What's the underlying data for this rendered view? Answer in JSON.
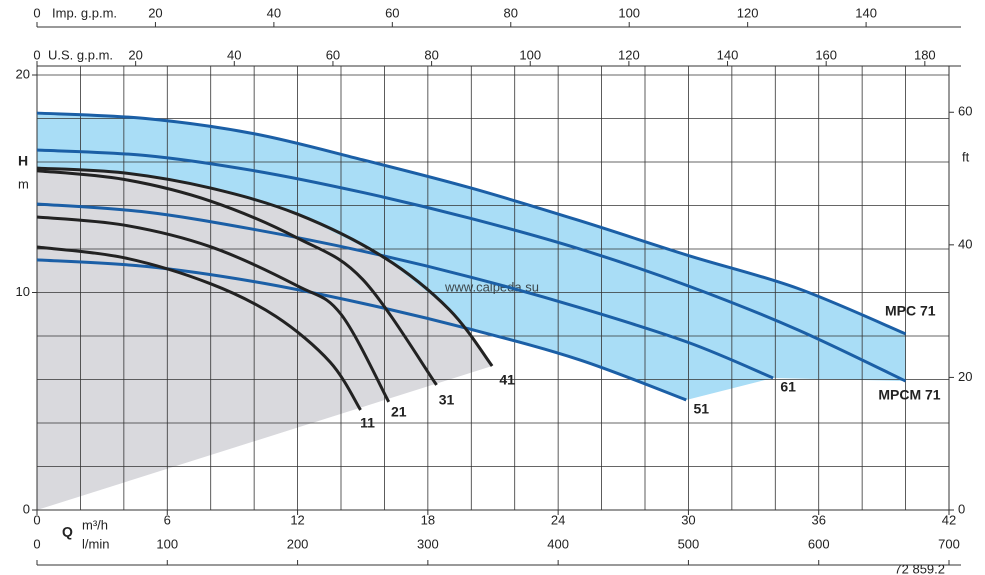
{
  "chart_data": {
    "type": "line",
    "xlabel": "Q",
    "xunit": "m³/h",
    "xlim": [
      0,
      42
    ],
    "xticks": [
      0,
      6,
      12,
      18,
      24,
      30,
      36,
      42
    ],
    "xgrid": [
      0,
      2,
      4,
      6,
      8,
      10,
      12,
      14,
      16,
      18,
      20,
      22,
      24,
      26,
      28,
      30,
      32,
      34,
      36,
      38,
      40,
      42
    ],
    "ylabel": "H",
    "yunit": "m",
    "ylim": [
      0,
      20
    ],
    "yticks": [
      0,
      10,
      20
    ],
    "ygrid": [
      0,
      2,
      4,
      6,
      8,
      10,
      12,
      14,
      16,
      18,
      20
    ],
    "y2unit": "ft",
    "y2lim": [
      0,
      65.62
    ],
    "y2ticks": [
      0,
      20,
      40,
      60
    ],
    "top_axes": [
      {
        "label": "Imp. g.p.m.",
        "xlim": [
          0,
          154
        ],
        "xticks": [
          0,
          20,
          40,
          60,
          80,
          100,
          120,
          140
        ]
      },
      {
        "label": "U.S. g.p.m.",
        "xlim": [
          0,
          184.9
        ],
        "xticks": [
          0,
          20,
          40,
          60,
          80,
          100,
          120,
          140,
          160,
          180
        ]
      }
    ],
    "bottom_axis": {
      "label": "l/min",
      "xlim": [
        0,
        700
      ],
      "xticks": [
        0,
        100,
        200,
        300,
        400,
        500,
        600,
        700
      ]
    },
    "band_color": "#a9ddf6",
    "shade_color": "#d9d9dd",
    "series": [
      {
        "name": "MPC 71",
        "color": "#1b5fa6",
        "x": [
          0,
          5,
          10,
          15,
          20,
          25,
          30,
          35,
          40
        ],
        "values": [
          18.25,
          18.0,
          17.3,
          16.1,
          14.8,
          13.3,
          11.7,
          10.2,
          8.1
        ]
      },
      {
        "name": "MPCM 71",
        "color": "#1b5fa6",
        "x": [
          0,
          5,
          10,
          15,
          20,
          25,
          30,
          35,
          40
        ],
        "values": [
          16.55,
          16.3,
          15.6,
          14.6,
          13.4,
          12.0,
          10.3,
          8.3,
          5.93
        ]
      },
      {
        "name": "61",
        "color": "#1b5fa6",
        "x": [
          0,
          5,
          10,
          15,
          20,
          25,
          30,
          33.9
        ],
        "values": [
          14.07,
          13.7,
          12.9,
          11.9,
          10.7,
          9.3,
          7.7,
          6.07
        ]
      },
      {
        "name": "51",
        "color": "#1b5fa6",
        "x": [
          0,
          5,
          10,
          15,
          20,
          25,
          29.9
        ],
        "values": [
          11.5,
          11.2,
          10.5,
          9.5,
          8.3,
          6.9,
          5.06
        ]
      },
      {
        "name": "41",
        "color": "#222222",
        "x": [
          0,
          4,
          8,
          12,
          16,
          19,
          20.96
        ],
        "values": [
          15.72,
          15.5,
          14.8,
          13.6,
          11.6,
          9.2,
          6.62
        ]
      },
      {
        "name": "31",
        "color": "#222222",
        "x": [
          0,
          4,
          8,
          12,
          15,
          18.4
        ],
        "values": [
          15.6,
          15.2,
          14.2,
          12.5,
          10.6,
          5.75
        ]
      },
      {
        "name": "21",
        "color": "#222222",
        "x": [
          0,
          4,
          8,
          12,
          14,
          16.2
        ],
        "values": [
          13.47,
          13.1,
          12.1,
          10.3,
          9.0,
          4.97
        ]
      },
      {
        "name": "11",
        "color": "#222222",
        "x": [
          0,
          4,
          8,
          11,
          13.5,
          14.9
        ],
        "values": [
          12.09,
          11.6,
          10.4,
          8.9,
          6.8,
          4.6
        ]
      }
    ],
    "watermark": "www.calpeda.su",
    "code": "72 859.2"
  }
}
